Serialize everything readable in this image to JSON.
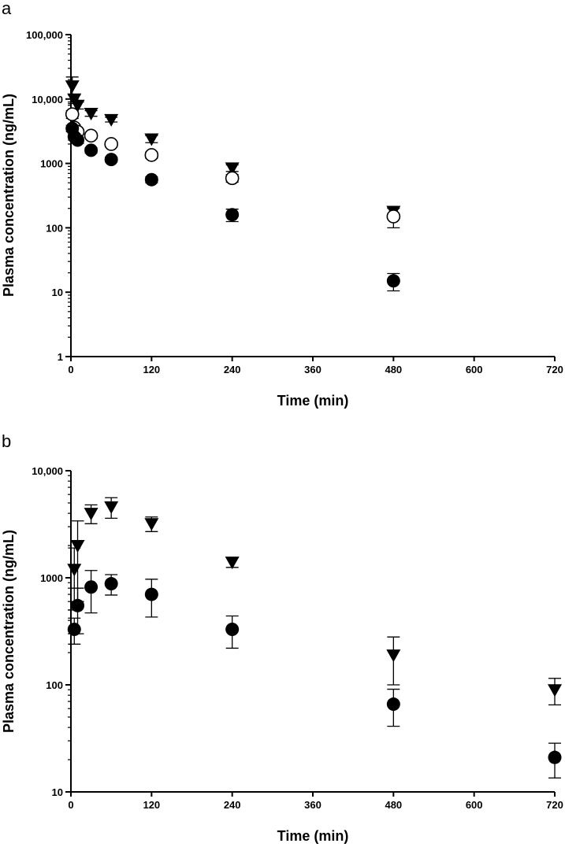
{
  "chart_data": [
    {
      "panel": "a",
      "type": "scatter",
      "xlabel": "Time (min)",
      "ylabel": "Plasma concentration (ng/mL)",
      "xlim": [
        0,
        720
      ],
      "ylim": [
        1,
        100000
      ],
      "yscale": "log",
      "xticks": [
        0,
        120,
        240,
        360,
        480,
        600,
        720
      ],
      "xtick_labels": [
        "0",
        "120",
        "240",
        "360",
        "480",
        "600",
        "720"
      ],
      "yticks": [
        1,
        10,
        100,
        1000,
        10000,
        100000
      ],
      "ytick_labels": [
        "1",
        "10",
        "100",
        "1000",
        "10,000",
        "100,000"
      ],
      "grid": false,
      "series": [
        {
          "marker": "triangle-down-filled",
          "color": "#000000",
          "x": [
            2,
            5,
            10,
            30,
            60,
            120,
            240,
            480
          ],
          "y": [
            16000,
            10000,
            8000,
            6000,
            4800,
            2400,
            850,
            180
          ],
          "err": [
            6000,
            1500,
            1000,
            600,
            400,
            300,
            100,
            30
          ]
        },
        {
          "marker": "circle-open",
          "color": "#000000",
          "x": [
            2,
            5,
            10,
            30,
            60,
            120,
            240,
            480
          ],
          "y": [
            5800,
            3600,
            3100,
            2700,
            2000,
            1350,
            590,
            150
          ],
          "err": [
            800,
            400,
            300,
            250,
            200,
            150,
            80,
            50
          ]
        },
        {
          "marker": "circle-filled",
          "color": "#000000",
          "x": [
            2,
            5,
            10,
            30,
            60,
            120,
            240,
            480
          ],
          "y": [
            3500,
            2600,
            2300,
            1600,
            1150,
            560,
            160,
            15
          ],
          "err": [
            400,
            300,
            250,
            150,
            100,
            60,
            35,
            4.5
          ]
        }
      ]
    },
    {
      "panel": "b",
      "type": "scatter",
      "xlabel": "Time (min)",
      "ylabel": "Plasma concentration (ng/mL)",
      "xlim": [
        0,
        720
      ],
      "ylim": [
        10,
        10000
      ],
      "yscale": "log",
      "xticks": [
        0,
        120,
        240,
        360,
        480,
        600,
        720
      ],
      "xtick_labels": [
        "0",
        "120",
        "240",
        "360",
        "480",
        "600",
        "720"
      ],
      "yticks": [
        10,
        100,
        1000,
        10000
      ],
      "ytick_labels": [
        "10",
        "100",
        "1000",
        "10,000"
      ],
      "grid": false,
      "series": [
        {
          "marker": "triangle-down-filled",
          "color": "#000000",
          "x": [
            5,
            10,
            30,
            60,
            120,
            240,
            480,
            720
          ],
          "y": [
            1200,
            2000,
            4000,
            4600,
            3200,
            1400,
            190,
            90
          ],
          "err": [
            700,
            1400,
            800,
            1000,
            500,
            150,
            90,
            25
          ]
        },
        {
          "marker": "circle-filled",
          "color": "#000000",
          "x": [
            5,
            10,
            30,
            60,
            120,
            240,
            480,
            720
          ],
          "y": [
            330,
            550,
            820,
            880,
            700,
            330,
            66,
            21
          ],
          "err": [
            90,
            250,
            350,
            190,
            270,
            110,
            25,
            7.5
          ]
        }
      ]
    }
  ]
}
